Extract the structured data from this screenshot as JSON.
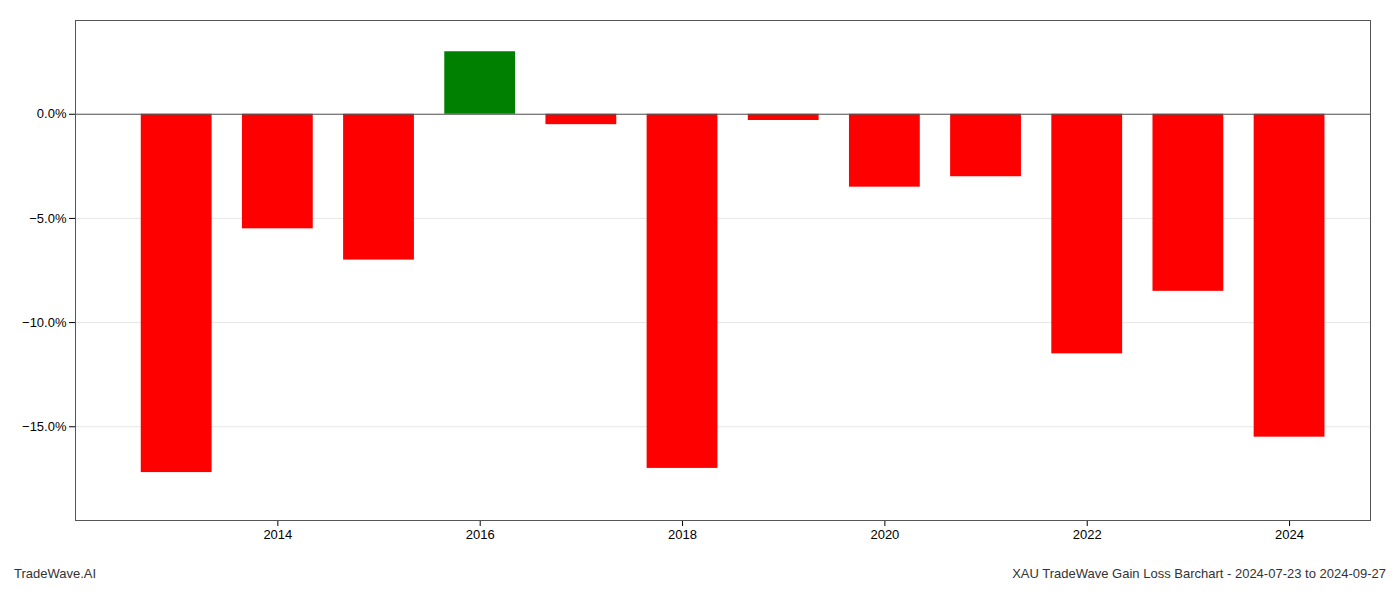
{
  "chart_data": {
    "type": "bar",
    "title": "XAU TradeWave Gain Loss Barchart - 2024-07-23 to 2024-09-27",
    "annotations": [
      "TradeWave.AI"
    ],
    "x": [
      2013,
      2014,
      2015,
      2016,
      2017,
      2018,
      2019,
      2020,
      2021,
      2022,
      2023,
      2024
    ],
    "values": [
      -17.2,
      -5.5,
      -7.0,
      3.0,
      -0.5,
      -17.0,
      -0.3,
      -3.5,
      -3.0,
      -11.5,
      -8.5,
      -15.5
    ],
    "colors": [
      "#ff0000",
      "#ff0000",
      "#ff0000",
      "#008000",
      "#ff0000",
      "#ff0000",
      "#ff0000",
      "#ff0000",
      "#ff0000",
      "#ff0000",
      "#ff0000",
      "#ff0000"
    ],
    "xlim": [
      2012,
      2024.8
    ],
    "xticks": [
      2014,
      2016,
      2018,
      2020,
      2022,
      2024
    ],
    "ylim": [
      -19.5,
      4.5
    ],
    "yticks": [
      {
        "value": 0.0,
        "label": "0.0%"
      },
      {
        "value": -5.0,
        "label": "−5.0%"
      },
      {
        "value": -10.0,
        "label": "−10.0%"
      },
      {
        "value": -15.0,
        "label": "−15.0%"
      }
    ],
    "grid": true
  }
}
